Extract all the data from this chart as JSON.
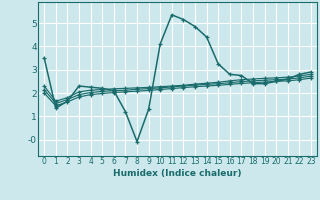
{
  "xlabel": "Humidex (Indice chaleur)",
  "bg_color": "#cce8ec",
  "grid_color": "#ffffff",
  "line_color": "#1a6b6b",
  "xlim": [
    -0.5,
    23.5
  ],
  "ylim": [
    -0.7,
    5.9
  ],
  "xticks": [
    0,
    1,
    2,
    3,
    4,
    5,
    6,
    7,
    8,
    9,
    10,
    11,
    12,
    13,
    14,
    15,
    16,
    17,
    18,
    19,
    20,
    21,
    22,
    23
  ],
  "yticks": [
    0,
    1,
    2,
    3,
    4,
    5
  ],
  "ytick_labels": [
    "-0",
    "1",
    "2",
    "3",
    "4",
    "5"
  ],
  "series": [
    {
      "x": [
        0,
        1,
        2,
        3,
        4,
        5,
        6,
        7,
        8,
        9,
        10,
        11,
        12,
        13,
        14,
        15,
        16,
        17,
        18,
        19,
        20,
        21,
        22,
        23
      ],
      "y": [
        3.5,
        1.35,
        1.65,
        2.3,
        2.25,
        2.2,
        2.1,
        1.2,
        -0.08,
        1.3,
        4.1,
        5.35,
        5.15,
        4.85,
        4.4,
        3.25,
        2.8,
        2.75,
        2.4,
        2.4,
        2.5,
        2.6,
        2.8,
        2.9
      ]
    },
    {
      "x": [
        0,
        1,
        2,
        3,
        4,
        5,
        6,
        7,
        8,
        9,
        10,
        11,
        12,
        13,
        14,
        15,
        16,
        17,
        18,
        19,
        20,
        21,
        22,
        23
      ],
      "y": [
        2.3,
        1.65,
        1.8,
        2.05,
        2.12,
        2.15,
        2.18,
        2.2,
        2.22,
        2.24,
        2.27,
        2.3,
        2.33,
        2.38,
        2.42,
        2.46,
        2.52,
        2.57,
        2.6,
        2.63,
        2.65,
        2.68,
        2.73,
        2.8
      ]
    },
    {
      "x": [
        0,
        1,
        2,
        3,
        4,
        5,
        6,
        7,
        8,
        9,
        10,
        11,
        12,
        13,
        14,
        15,
        16,
        17,
        18,
        19,
        20,
        21,
        22,
        23
      ],
      "y": [
        2.15,
        1.55,
        1.72,
        1.93,
        2.02,
        2.07,
        2.1,
        2.12,
        2.16,
        2.19,
        2.22,
        2.26,
        2.3,
        2.34,
        2.37,
        2.4,
        2.44,
        2.49,
        2.52,
        2.55,
        2.57,
        2.6,
        2.65,
        2.72
      ]
    },
    {
      "x": [
        0,
        1,
        2,
        3,
        4,
        5,
        6,
        7,
        8,
        9,
        10,
        11,
        12,
        13,
        14,
        15,
        16,
        17,
        18,
        19,
        20,
        21,
        22,
        23
      ],
      "y": [
        2.0,
        1.45,
        1.62,
        1.83,
        1.93,
        1.98,
        2.02,
        2.05,
        2.08,
        2.11,
        2.15,
        2.19,
        2.23,
        2.27,
        2.3,
        2.33,
        2.37,
        2.41,
        2.44,
        2.47,
        2.5,
        2.52,
        2.57,
        2.64
      ]
    }
  ]
}
